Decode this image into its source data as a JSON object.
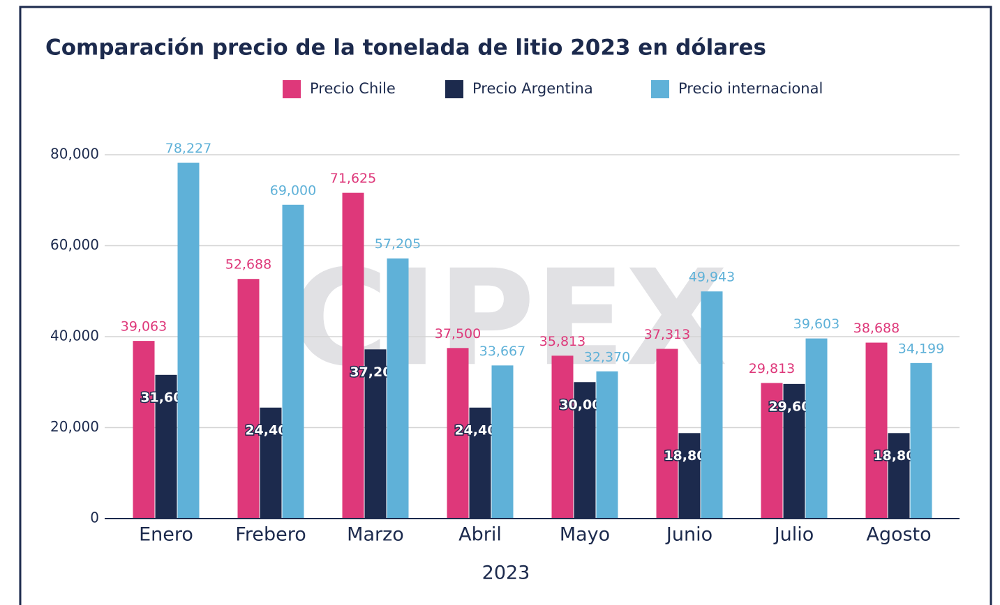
{
  "chart_data": {
    "type": "bar",
    "title": "Comparación precio de la tonelada de litio 2023 en dólares",
    "watermark": "CIPEX",
    "x_label": "2023",
    "categories": [
      "Enero",
      "Frebero",
      "Marzo",
      "Abril",
      "Mayo",
      "Junio",
      "Julio",
      "Agosto"
    ],
    "series": [
      {
        "name": "Precio Chile",
        "color": "#de387a",
        "values": [
          39063,
          52688,
          71625,
          37500,
          35813,
          37313,
          29813,
          38688
        ],
        "value_labels": [
          "39,063",
          "52,688",
          "71,625",
          "37,500",
          "35,813",
          "37,313",
          "29,813",
          "38,688"
        ]
      },
      {
        "name": "Precio Argentina",
        "color": "#1c2a4d",
        "values": [
          31600,
          24400,
          37200,
          24400,
          30000,
          18800,
          29600,
          18800
        ],
        "value_labels": [
          "31,600",
          "24,400",
          "37,200",
          "24,400",
          "30,000",
          "18,800",
          "29,600",
          "18,800"
        ]
      },
      {
        "name": "Precio internacional",
        "color": "#5fb1d8",
        "values": [
          78227,
          69000,
          57205,
          33667,
          32370,
          49943,
          39603,
          34199
        ],
        "value_labels": [
          "78,227",
          "69,000",
          "57,205",
          "33,667",
          "32,370",
          "49,943",
          "39,603",
          "34,199"
        ]
      }
    ],
    "ylim": [
      0,
      80000
    ],
    "yticks": [
      0,
      {
        "value": 20000,
        "label": "20,000"
      },
      {
        "value": 40000,
        "label": "40,000"
      },
      {
        "value": 60000,
        "label": "60,000"
      },
      {
        "value": 80000,
        "label": "80,000"
      }
    ],
    "grid": true,
    "legend": "top"
  }
}
